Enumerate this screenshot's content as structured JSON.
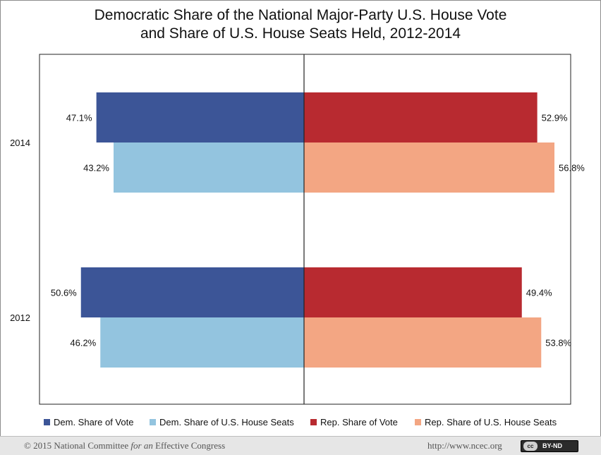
{
  "chart_data": {
    "type": "bar",
    "orientation": "horizontal-diverging",
    "title_line1": "Democratic Share of the National Major-Party U.S. House Vote",
    "title_line2": "and Share of U.S. House Seats Held, 2012-2014",
    "categories": [
      "2014",
      "2012"
    ],
    "series": [
      {
        "name": "Dem. Share of Vote",
        "values": [
          47.1,
          50.6
        ],
        "labels": [
          "47.1%",
          "50.6%"
        ],
        "side": "left",
        "color": "#3c5597"
      },
      {
        "name": "Dem. Share of U.S. House Seats",
        "values": [
          43.2,
          46.2
        ],
        "labels": [
          "43.2%",
          "46.2%"
        ],
        "side": "left",
        "color": "#93c4df"
      },
      {
        "name": "Rep. Share of Vote",
        "values": [
          52.9,
          49.4
        ],
        "labels": [
          "52.9%",
          "49.4%"
        ],
        "side": "right",
        "color": "#b82a30"
      },
      {
        "name": "Rep. Share of U.S. House Seats",
        "values": [
          56.8,
          53.8
        ],
        "labels": [
          "56.8%",
          "53.8%"
        ],
        "side": "right",
        "color": "#f3a683"
      }
    ],
    "xlim": [
      -60,
      60
    ],
    "grid": false,
    "legend_position": "bottom"
  },
  "footer": {
    "copyright_prefix": "© 2015 National Committee ",
    "copyright_italic": "for an",
    "copyright_suffix": " Effective Congress",
    "url": "http://www.ncec.org",
    "license_icon": "cc",
    "license_text": "BY-ND"
  }
}
